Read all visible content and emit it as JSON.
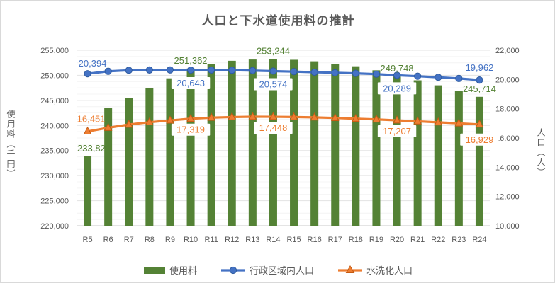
{
  "title": "人口と下水道使用料の推計",
  "axes_titles": {
    "left": "使用料（千円）",
    "right": "人口（人）"
  },
  "legend": {
    "items": [
      {
        "label": "使用料",
        "type": "bar",
        "color": "#548235"
      },
      {
        "label": "行政区域内人口",
        "type": "line-circle",
        "color": "#4472C4"
      },
      {
        "label": "水洗化人口",
        "type": "line-triangle",
        "color": "#ED7D31"
      }
    ],
    "position": "bottom"
  },
  "colors": {
    "bar_green": "#548235",
    "line_blue": "#4472C4",
    "blue_marker_edge": "#2E5B9F",
    "line_orange": "#ED7D31",
    "orange_marker_edge": "#C55A11",
    "axis_text": "#595959",
    "grid_major": "#e3e3e3",
    "grid_minor": "#f4f4f4",
    "axis_line": "#c9c9c9"
  },
  "chart_data": {
    "type": "bar",
    "subtype": "combo-bar-lines",
    "title": "人口と下水道使用料の推計",
    "categories": [
      "R5",
      "R6",
      "R7",
      "R8",
      "R9",
      "R10",
      "R11",
      "R12",
      "R13",
      "R14",
      "R15",
      "R16",
      "R17",
      "R18",
      "R19",
      "R20",
      "R21",
      "R22",
      "R23",
      "R24"
    ],
    "series": [
      {
        "name": "使用料",
        "type": "bar",
        "axis": "left",
        "color": "#548235",
        "values": [
          233829,
          243500,
          245500,
          247500,
          249400,
          251362,
          252300,
          252900,
          253150,
          253244,
          253100,
          252800,
          252300,
          251800,
          251000,
          249748,
          249000,
          248000,
          246900,
          245714
        ]
      },
      {
        "name": "行政区域内人口",
        "type": "line",
        "marker": "circle",
        "axis": "right",
        "color": "#4472C4",
        "values": [
          20394,
          20560,
          20630,
          20650,
          20655,
          20643,
          20648,
          20635,
          20610,
          20574,
          20540,
          20500,
          20460,
          20420,
          20370,
          20289,
          20225,
          20150,
          20070,
          19962
        ]
      },
      {
        "name": "水洗化人口",
        "type": "line",
        "marker": "triangle",
        "axis": "right",
        "color": "#ED7D31",
        "values": [
          16451,
          16700,
          16920,
          17080,
          17200,
          17319,
          17390,
          17430,
          17450,
          17448,
          17435,
          17410,
          17370,
          17320,
          17270,
          17207,
          17140,
          17070,
          17000,
          16929
        ]
      }
    ],
    "labeled_point_indices": [
      0,
      5,
      9,
      15,
      19
    ],
    "shown_data_labels": {
      "使用料": [
        "233,829",
        "251,362",
        "253,244",
        "249,748",
        "245,714"
      ],
      "行政区域内人口": [
        "20,394",
        "20,643",
        "20,574",
        "20,289",
        "19,962"
      ],
      "水洗化人口": [
        "16,451",
        "17,319",
        "17,448",
        "17,207",
        "16,929"
      ]
    },
    "axes": {
      "left": {
        "title": "使用料（千円）",
        "min": 220000,
        "max": 255000,
        "major": 5000,
        "minor": 1250,
        "tick_labels": [
          "220,000",
          "225,000",
          "230,000",
          "235,000",
          "240,000",
          "245,000",
          "250,000",
          "255,000"
        ]
      },
      "right": {
        "title": "人口（人）",
        "min": 10000,
        "max": 22000,
        "major": 2000,
        "tick_labels": [
          "10,000",
          "12,000",
          "14,000",
          "16,000",
          "18,000",
          "20,000",
          "22,000"
        ]
      }
    },
    "grid": true,
    "legend_position": "bottom"
  }
}
